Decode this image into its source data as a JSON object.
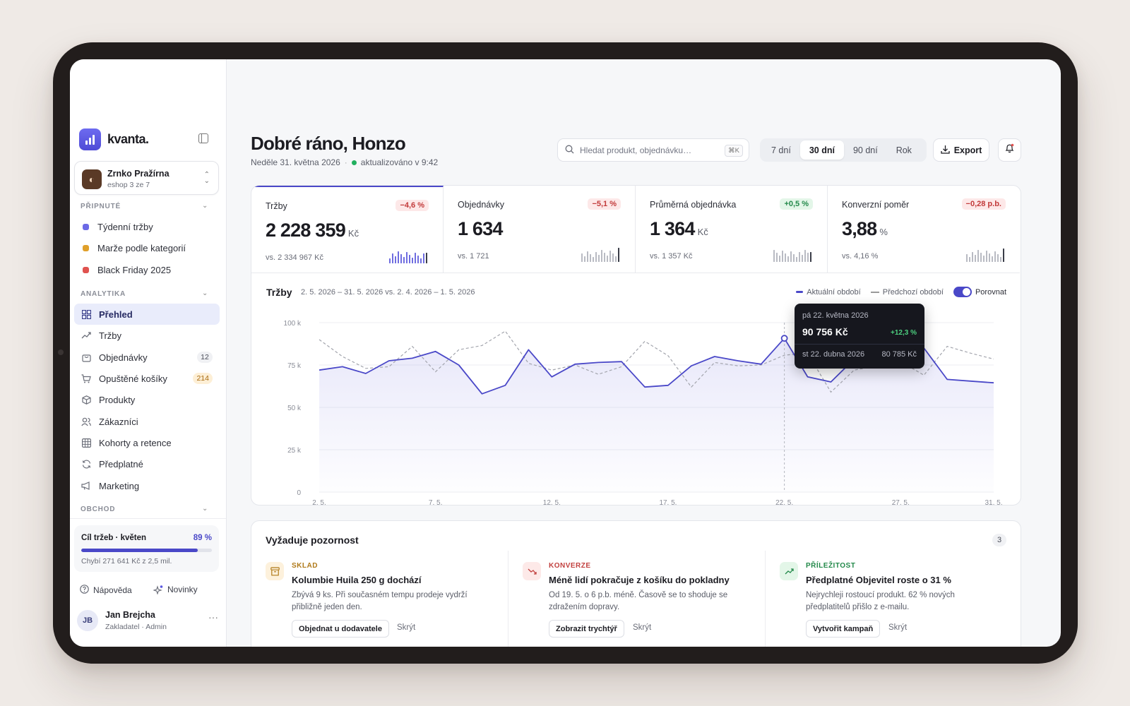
{
  "brand": {
    "name": "kvanta."
  },
  "store": {
    "name": "Zrnko Pražírna",
    "sub": "eshop 3 ze 7"
  },
  "sections": {
    "pinned": "PŘIPNUTÉ",
    "analytics": "ANALYTIKA",
    "shop": "OBCHOD"
  },
  "pinned": [
    {
      "label": "Týdenní tržby",
      "color": "#6c6ae6"
    },
    {
      "label": "Marže podle kategorií",
      "color": "#e0a02a"
    },
    {
      "label": "Black Friday 2025",
      "color": "#e0524f"
    }
  ],
  "nav": [
    {
      "label": "Přehled",
      "icon": "grid-icon"
    },
    {
      "label": "Tržby",
      "icon": "trend-icon"
    },
    {
      "label": "Objednávky",
      "icon": "bag-icon",
      "badge": "12"
    },
    {
      "label": "Opuštěné košíky",
      "icon": "cart-icon",
      "badge": "214"
    },
    {
      "label": "Produkty",
      "icon": "box-icon"
    },
    {
      "label": "Zákazníci",
      "icon": "users-icon"
    },
    {
      "label": "Kohorty a retence",
      "icon": "table-icon"
    },
    {
      "label": "Předplatné",
      "icon": "refresh-icon"
    },
    {
      "label": "Marketing",
      "icon": "megaphone-icon"
    }
  ],
  "goal": {
    "label": "Cíl tržeb · květen",
    "percent": "89 %",
    "progress": 0.89,
    "sub": "Chybí 271 641 Kč z 2,5 mil."
  },
  "footer": {
    "help": "Nápověda",
    "news": "Novinky"
  },
  "user": {
    "initials": "JB",
    "name": "Jan Brejcha",
    "role": "Zakladatel · Admin"
  },
  "header": {
    "greeting": "Dobré ráno, Honzo",
    "date": "Neděle 31. května 2026",
    "updated": "aktualizováno v 9:42",
    "search_placeholder": "Hledat produkt, objednávku…",
    "search_shortcut": "⌘K",
    "ranges": [
      "7 dní",
      "30 dní",
      "90 dní",
      "Rok"
    ],
    "active_range": "30 dní",
    "export": "Export"
  },
  "kpis": [
    {
      "label": "Tržby",
      "delta": "−4,6 %",
      "trend": "neg",
      "value": "2 228 359",
      "unit": "Kč",
      "prev": "vs. 2 334 967 Kč"
    },
    {
      "label": "Objednávky",
      "delta": "−5,1 %",
      "trend": "neg",
      "value": "1 634",
      "unit": "",
      "prev": "vs. 1 721"
    },
    {
      "label": "Průměrná objednávka",
      "delta": "+0,5 %",
      "trend": "pos",
      "value": "1 364",
      "unit": "Kč",
      "prev": "vs. 1 357 Kč"
    },
    {
      "label": "Konverzní poměr",
      "delta": "−0,28 p.b.",
      "trend": "neg",
      "value": "3,88",
      "unit": "%",
      "prev": "vs. 4,16 %"
    }
  ],
  "chart": {
    "title": "Tržby",
    "range": "2. 5. 2026 – 31. 5. 2026 vs. 2. 4. 2026 – 1. 5. 2026",
    "legend_current": "Aktuální období",
    "legend_previous": "Předchozí období",
    "compare_label": "Porovnat",
    "tooltip": {
      "date": "pá 22. května 2026",
      "value": "90 756 Kč",
      "delta": "+12,3 %",
      "prev_date": "st 22. dubna 2026",
      "prev_value": "80 785 Kč"
    }
  },
  "chart_data": {
    "type": "line",
    "title": "Tržby",
    "x": [
      2,
      3,
      4,
      5,
      6,
      7,
      8,
      9,
      10,
      11,
      12,
      13,
      14,
      15,
      16,
      17,
      18,
      19,
      20,
      21,
      22,
      23,
      24,
      25,
      26,
      27,
      28,
      29,
      30,
      31
    ],
    "x_ticks": [
      "2. 5.",
      "7. 5.",
      "12. 5.",
      "17. 5.",
      "22. 5.",
      "27. 5.",
      "31. 5."
    ],
    "y_ticks": [
      "0",
      "25 k",
      "50 k",
      "75 k",
      "100 k"
    ],
    "ylim": [
      0,
      100000
    ],
    "series": [
      {
        "name": "Aktuální období",
        "values": [
          72000,
          74000,
          70000,
          77500,
          79000,
          83000,
          75000,
          58000,
          63000,
          84000,
          68000,
          75500,
          76500,
          77000,
          62000,
          63000,
          74500,
          80000,
          77500,
          75500,
          90756,
          68000,
          65000,
          78500,
          74000,
          83000,
          85000,
          66500,
          65500,
          64500
        ]
      },
      {
        "name": "Předchozí období",
        "values": [
          90000,
          80000,
          73000,
          74000,
          86000,
          71000,
          84000,
          86500,
          95000,
          76000,
          72000,
          75000,
          69500,
          74000,
          89000,
          80500,
          62000,
          76500,
          74500,
          75000,
          80785,
          82000,
          59000,
          72000,
          74500,
          77000,
          69000,
          86000,
          82000,
          78500
        ]
      }
    ],
    "highlight_index": 20
  },
  "attention": {
    "title": "Vyžaduje pozornost",
    "count": "3",
    "items": [
      {
        "kind": "SKLAD",
        "kind_color": "#b07a1a",
        "icon": "archive-icon",
        "icon_bg": "#fdf1dc",
        "head": "Kolumbie Huila 250 g dochází",
        "body": "Zbývá 9 ks. Při současném tempu prodeje vydrží přibližně jeden den.",
        "action": "Objednat u dodavatele",
        "hide": "Skrýt"
      },
      {
        "kind": "KONVERZE",
        "kind_color": "#c2413f",
        "icon": "trend-down-icon",
        "icon_bg": "#fde9e8",
        "head": "Méně lidí pokračuje z košíku do pokladny",
        "body": "Od 19. 5. o 6 p.b. méně. Časově se to shoduje se zdražením dopravy.",
        "action": "Zobrazit trychtýř",
        "hide": "Skrýt"
      },
      {
        "kind": "PŘÍLEŽITOST",
        "kind_color": "#23894a",
        "icon": "trend-up-icon",
        "icon_bg": "#e3f6e8",
        "head": "Předplatné Objevitel roste o 31 %",
        "body": "Nejrychleji rostoucí produkt. 62 % nových předplatitelů přišlo z e-mailu.",
        "action": "Vytvořit kampaň",
        "hide": "Skrýt"
      }
    ]
  }
}
